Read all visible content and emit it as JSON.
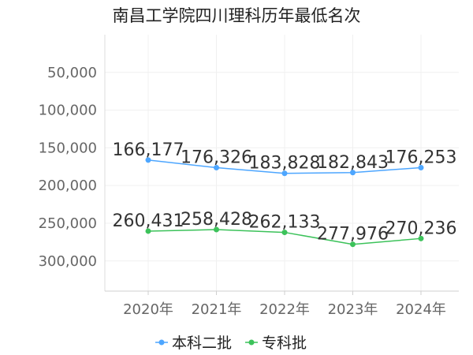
{
  "chart_data": {
    "type": "line",
    "title": "南昌工学院四川理科历年最低名次",
    "xlabel": "",
    "ylabel": "",
    "categories": [
      "2020年",
      "2021年",
      "2022年",
      "2023年",
      "2024年"
    ],
    "y_ticks": [
      50000,
      100000,
      150000,
      200000,
      250000,
      300000
    ],
    "y_tick_labels": [
      "50,000",
      "100,000",
      "150,000",
      "200,000",
      "250,000",
      "300,000"
    ],
    "ylim": [
      340000,
      0
    ],
    "y_inverted": true,
    "grid": true,
    "legend_position": "bottom",
    "series": [
      {
        "name": "本科二批",
        "color": "#4da6ff",
        "values": [
          166177,
          176326,
          183828,
          182843,
          176253
        ],
        "labels": [
          "166,177",
          "176,326",
          "183,828",
          "182,843",
          "176,253"
        ]
      },
      {
        "name": "专科批",
        "color": "#3cc25a",
        "values": [
          260431,
          258428,
          262133,
          277976,
          270236
        ],
        "labels": [
          "260,431",
          "258,428",
          "262,133",
          "277,976",
          "270,236"
        ]
      }
    ]
  }
}
